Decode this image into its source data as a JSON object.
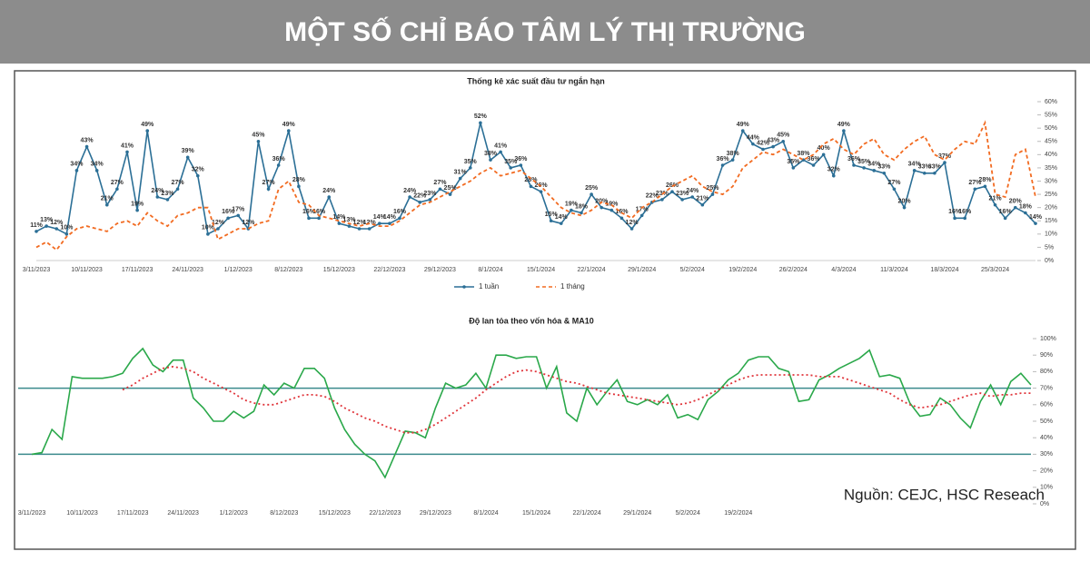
{
  "header": {
    "title": "MỘT SỐ CHỈ BÁO TÂM LÝ THỊ TRƯỜNG"
  },
  "source": "Nguồn: CEJC, HSC Reseach",
  "chart_data": [
    {
      "type": "line",
      "title": "Thống kê xác suất đầu tư ngắn hạn",
      "categories": [
        "3/11/2023",
        null,
        null,
        null,
        null,
        "10/11/2023",
        null,
        null,
        null,
        null,
        "17/11/2023",
        null,
        null,
        null,
        null,
        "24/11/2023",
        null,
        null,
        null,
        null,
        "1/12/2023",
        null,
        null,
        null,
        null,
        "8/12/2023",
        null,
        null,
        null,
        null,
        "15/12/2023",
        null,
        null,
        null,
        null,
        "22/12/2023",
        null,
        null,
        null,
        null,
        "29/12/2023",
        null,
        null,
        null,
        null,
        "8/1/2024",
        null,
        null,
        null,
        null,
        "15/1/2024",
        null,
        null,
        null,
        null,
        "22/1/2024",
        null,
        null,
        null,
        null,
        "29/1/2024",
        null,
        null,
        null,
        null,
        "5/2/2024",
        null,
        null,
        null,
        null,
        "19/2/2024",
        null,
        null,
        null,
        null,
        "26/2/2024",
        null,
        null,
        null,
        null,
        "4/3/2024",
        null,
        null,
        null,
        null,
        "11/3/2024",
        null,
        null,
        null,
        null,
        "18/3/2024",
        null,
        null,
        null,
        null,
        "25/3/2024",
        null,
        null,
        null,
        null
      ],
      "ylim": [
        0,
        60
      ],
      "yticks": [
        {
          "value": 0,
          "label": "0%"
        },
        {
          "value": 5,
          "label": "5%"
        },
        {
          "value": 10,
          "label": "10%"
        },
        {
          "value": 15,
          "label": "15%"
        },
        {
          "value": 20,
          "label": "20%"
        },
        {
          "value": 25,
          "label": "25%"
        },
        {
          "value": 30,
          "label": "30%"
        },
        {
          "value": 35,
          "label": "35%"
        },
        {
          "value": 40,
          "label": "40%"
        },
        {
          "value": 45,
          "label": "45%"
        },
        {
          "value": 50,
          "label": "50%"
        },
        {
          "value": 55,
          "label": "55%"
        },
        {
          "value": 60,
          "label": "60%"
        }
      ],
      "legend": "bottom",
      "series": [
        {
          "name": "1 tuần",
          "color": "#2b6f96",
          "dash": "solid",
          "marker": true,
          "values": [
            11,
            13,
            12,
            10,
            34,
            43,
            34,
            21,
            27,
            41,
            19,
            49,
            24,
            23,
            27,
            39,
            32,
            10,
            12,
            16,
            17,
            12,
            45,
            27,
            36,
            49,
            28,
            16,
            16,
            24,
            14,
            13,
            12,
            12,
            14,
            14,
            16,
            24,
            22,
            23,
            27,
            25,
            31,
            35,
            52,
            38,
            41,
            35,
            36,
            28,
            26,
            15,
            14,
            19,
            18,
            25,
            20,
            19,
            16,
            12,
            17,
            22,
            23,
            26,
            23,
            24,
            21,
            25,
            36,
            38,
            49,
            44,
            42,
            43,
            45,
            35,
            38,
            36,
            40,
            32,
            49,
            36,
            35,
            34,
            33,
            27,
            20,
            34,
            33,
            33,
            37,
            16,
            16,
            27,
            28,
            21,
            16,
            20,
            18,
            14
          ],
          "value_labels": [
            "11%",
            "13%",
            "12%",
            "10%",
            "34%",
            "43%",
            "34%",
            "21%",
            "27%",
            "41%",
            "19%",
            "49%",
            "24%",
            "23%",
            "27%",
            "39%",
            "32%",
            "10%",
            "12%",
            "16%",
            "17%",
            "12%",
            "45%",
            "27%",
            "36%",
            "49%",
            "28%",
            "16%",
            "16%",
            "24%",
            "14%",
            "13%",
            "12%",
            "12%",
            "14%",
            "14%",
            "16%",
            "24%",
            "22%",
            "23%",
            "27%",
            "25%",
            "31%",
            "35%",
            "52%",
            "38%",
            "41%",
            "35%",
            "36%",
            "28%",
            "26%",
            "15%",
            "14%",
            "19%",
            "18%",
            "25%",
            "20%",
            "19%",
            "16%",
            "12%",
            "17%",
            "22%",
            "23%",
            "26%",
            "23%",
            "24%",
            "21%",
            "25%",
            "36%",
            "38%",
            "49%",
            "44%",
            "42%",
            "43%",
            "45%",
            "35%",
            "38%",
            "36%",
            "40%",
            "32%",
            "49%",
            "36%",
            "35%",
            "34%",
            "33%",
            "27%",
            "20%",
            "34%",
            "33%",
            "33%",
            "37%",
            "16%",
            "16%",
            "27%",
            "28%",
            "21%",
            "16%",
            "20%",
            "18%",
            "14%"
          ]
        },
        {
          "name": "1 tháng",
          "color": "#f26b21",
          "dash": "dashed",
          "marker": false,
          "values": [
            5,
            7,
            4,
            9,
            12,
            13,
            12,
            11,
            14,
            15,
            13,
            18,
            15,
            13,
            17,
            18,
            20,
            20,
            8,
            10,
            12,
            12,
            14,
            15,
            27,
            30,
            22,
            21,
            17,
            16,
            15,
            14,
            13,
            14,
            13,
            13,
            15,
            18,
            21,
            22,
            24,
            26,
            28,
            30,
            33,
            35,
            32,
            33,
            34,
            31,
            28,
            24,
            20,
            18,
            17,
            19,
            22,
            21,
            18,
            16,
            20,
            22,
            25,
            28,
            30,
            32,
            28,
            26,
            25,
            28,
            35,
            38,
            41,
            40,
            42,
            40,
            38,
            40,
            44,
            46,
            42,
            40,
            44,
            46,
            40,
            38,
            42,
            45,
            47,
            40,
            38,
            42,
            45,
            44,
            52,
            25,
            24,
            40,
            42,
            24
          ]
        }
      ]
    },
    {
      "type": "line",
      "title": "Độ lan tỏa theo vốn hóa & MA10",
      "categories": [
        "3/11/2023",
        null,
        null,
        null,
        null,
        "10/11/2023",
        null,
        null,
        null,
        null,
        "17/11/2023",
        null,
        null,
        null,
        null,
        "24/11/2023",
        null,
        null,
        null,
        null,
        "1/12/2023",
        null,
        null,
        null,
        null,
        "8/12/2023",
        null,
        null,
        null,
        null,
        "15/12/2023",
        null,
        null,
        null,
        null,
        "22/12/2023",
        null,
        null,
        null,
        null,
        "29/12/2023",
        null,
        null,
        null,
        null,
        "8/1/2024",
        null,
        null,
        null,
        null,
        "15/1/2024",
        null,
        null,
        null,
        null,
        "22/1/2024",
        null,
        null,
        null,
        null,
        "29/1/2024",
        null,
        null,
        null,
        null,
        "5/2/2024",
        null,
        null,
        null,
        null,
        "19/2/2024",
        null,
        null,
        null,
        null,
        null,
        null,
        null,
        null,
        null,
        null,
        null,
        null,
        null,
        null,
        null,
        null,
        null,
        null,
        null,
        null,
        null,
        null,
        null,
        null,
        null,
        null,
        null,
        null,
        null
      ],
      "ylim": [
        0,
        100
      ],
      "yticks": [
        {
          "value": 0,
          "label": "0%"
        },
        {
          "value": 10,
          "label": "10%"
        },
        {
          "value": 20,
          "label": "20%"
        },
        {
          "value": 30,
          "label": "30%"
        },
        {
          "value": 40,
          "label": "40%"
        },
        {
          "value": 50,
          "label": "50%"
        },
        {
          "value": 60,
          "label": "60%"
        },
        {
          "value": 70,
          "label": "70%"
        },
        {
          "value": 80,
          "label": "80%"
        },
        {
          "value": 90,
          "label": "90%"
        },
        {
          "value": 100,
          "label": "100%"
        }
      ],
      "hlines": [
        70,
        30
      ],
      "hline_color": "#3a8a8c",
      "series": [
        {
          "color": "#2aa84a",
          "dash": "solid",
          "marker": false,
          "values": [
            30,
            31,
            45,
            39,
            77,
            76,
            76,
            76,
            77,
            79,
            88,
            94,
            84,
            80,
            87,
            87,
            64,
            58,
            50,
            50,
            56,
            52,
            56,
            72,
            66,
            73,
            70,
            82,
            82,
            76,
            58,
            45,
            36,
            30,
            26,
            16,
            30,
            44,
            43,
            40,
            58,
            73,
            70,
            72,
            79,
            70,
            90,
            90,
            88,
            89,
            89,
            70,
            83,
            55,
            50,
            70,
            60,
            68,
            75,
            62,
            60,
            63,
            60,
            66,
            52,
            54,
            51,
            63,
            68,
            75,
            79,
            87,
            89,
            89,
            82,
            80,
            62,
            63,
            75,
            78,
            82,
            85,
            88,
            93,
            77,
            78,
            76,
            61,
            53,
            54,
            64,
            60,
            52,
            46,
            62,
            72,
            60,
            74,
            79,
            72
          ]
        },
        {
          "color": "#e0343a",
          "dash": "dotted",
          "marker": false,
          "values": [
            null,
            null,
            null,
            null,
            null,
            null,
            null,
            null,
            null,
            69,
            72,
            76,
            79,
            82,
            83,
            82,
            80,
            76,
            73,
            70,
            67,
            63,
            61,
            60,
            60,
            62,
            64,
            66,
            66,
            65,
            62,
            58,
            55,
            52,
            50,
            47,
            45,
            43,
            43,
            45,
            48,
            52,
            56,
            60,
            64,
            69,
            73,
            77,
            80,
            81,
            80,
            78,
            76,
            74,
            73,
            71,
            69,
            67,
            66,
            65,
            64,
            63,
            62,
            61,
            60,
            61,
            63,
            66,
            69,
            72,
            75,
            77,
            78,
            78,
            78,
            78,
            78,
            78,
            77,
            77,
            77,
            75,
            73,
            71,
            69,
            67,
            63,
            60,
            58,
            59,
            60,
            62,
            64,
            66,
            67,
            65,
            66,
            66,
            67,
            67
          ]
        }
      ]
    }
  ]
}
